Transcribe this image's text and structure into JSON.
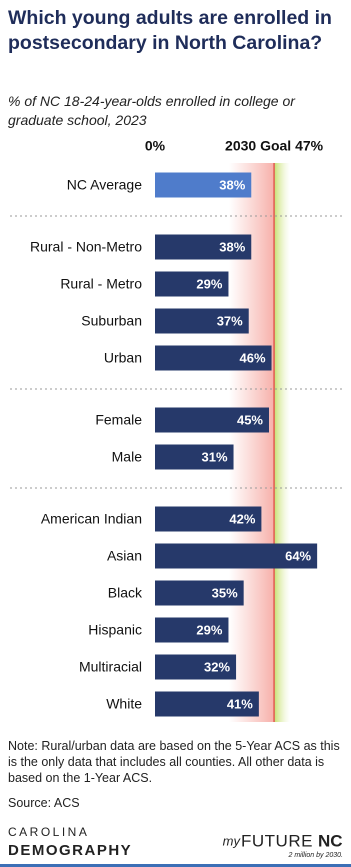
{
  "chart_data": {
    "type": "bar",
    "orientation": "horizontal",
    "title": "Which young adults are enrolled in postsecondary in North Carolina?",
    "subtitle": "% of NC 18-24-year-olds enrolled in college or graduate school, 2023",
    "xlim": [
      0,
      75
    ],
    "xticks": [
      {
        "value": 0,
        "label": "0%"
      }
    ],
    "goal": {
      "value": 47,
      "label": "2030 Goal 47%"
    },
    "color": "#26396a",
    "highlight_color": "#4f7ccb",
    "groups": [
      {
        "categories": [
          "NC Average"
        ],
        "values": [
          38
        ],
        "value_labels": [
          "38%"
        ],
        "highlight": true
      },
      {
        "categories": [
          "Rural - Non-Metro",
          "Rural - Metro",
          "Suburban",
          "Urban"
        ],
        "values": [
          38,
          29,
          37,
          46
        ],
        "value_labels": [
          "38%",
          "29%",
          "37%",
          "46%"
        ],
        "highlight": false
      },
      {
        "categories": [
          "Female",
          "Male"
        ],
        "values": [
          45,
          31
        ],
        "value_labels": [
          "45%",
          "31%"
        ],
        "highlight": false
      },
      {
        "categories": [
          "American Indian",
          "Asian",
          "Black",
          "Hispanic",
          "Multiracial",
          "White"
        ],
        "values": [
          42,
          64,
          35,
          29,
          32,
          41
        ],
        "value_labels": [
          "42%",
          "64%",
          "35%",
          "29%",
          "32%",
          "41%"
        ],
        "highlight": false
      }
    ],
    "note": "Note: Rural/urban data are based on the 5-Year ACS as this is the only data that includes all counties. All other data is based on the 1-Year ACS.",
    "source": "Source: ACS"
  },
  "footer": {
    "left_logo_top": "CAROLINA",
    "left_logo_bottom": "DEMOGRAPHY",
    "right_logo_prefix": "my",
    "right_logo_main": "FUTURE",
    "right_logo_suffix": "NC",
    "right_logo_tagline": "2 million by 2030."
  }
}
